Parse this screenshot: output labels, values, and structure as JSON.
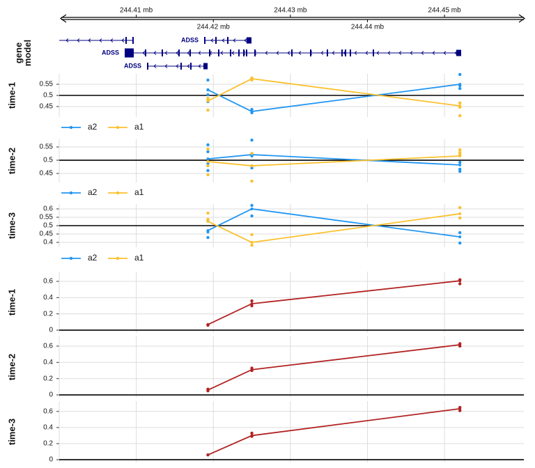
{
  "genome_axis": {
    "xlim": [
      244.4,
      244.4603
    ],
    "xticks": [
      {
        "value": 244.41,
        "label": "244.41 mb"
      },
      {
        "value": 244.42,
        "label": "244.42 mb"
      },
      {
        "value": 244.43,
        "label": "244.43 mb"
      },
      {
        "value": 244.44,
        "label": "244.44 mb"
      },
      {
        "value": 244.45,
        "label": "244.45 mb"
      }
    ]
  },
  "gene_model": {
    "label": "gene model",
    "transcripts": [
      {
        "label": "ADSS"
      },
      {
        "label": "ADSS"
      },
      {
        "label": "ADSS"
      }
    ]
  },
  "chart_data": [
    {
      "type": "line",
      "ylabel": "time-1",
      "x": [
        244.4193,
        244.425,
        244.452
      ],
      "ylim": [
        0.403,
        0.597
      ],
      "yticks": [
        0.45,
        0.5,
        0.55
      ],
      "hline": 0.5,
      "legend": true,
      "series": [
        {
          "name": "a2",
          "color": "#2196f3",
          "values": [
            0.525,
            0.428,
            0.55
          ],
          "replicates": [
            [
              0.569,
              0.525,
              0.503,
              0.472
            ],
            [
              0.437,
              0.422
            ],
            [
              0.594,
              0.544,
              0.531
            ]
          ]
        },
        {
          "name": "a1",
          "color": "#fbc02d",
          "values": [
            0.475,
            0.575,
            0.453
          ],
          "replicates": [
            [
              0.487,
              0.478,
              0.434
            ],
            [
              0.578,
              0.569
            ],
            [
              0.466,
              0.447,
              0.409
            ]
          ]
        }
      ]
    },
    {
      "type": "line",
      "ylabel": "time-2",
      "x": [
        244.4193,
        244.425,
        244.452
      ],
      "ylim": [
        0.416,
        0.579
      ],
      "yticks": [
        0.45,
        0.5,
        0.55
      ],
      "hline": 0.5,
      "legend": true,
      "series": [
        {
          "name": "a2",
          "color": "#2196f3",
          "values": [
            0.505,
            0.521,
            0.482
          ],
          "replicates": [
            [
              0.558,
              0.532,
              0.487,
              0.461
            ],
            [
              0.576,
              0.516,
              0.471
            ],
            [
              0.492,
              0.466,
              0.458
            ]
          ]
        },
        {
          "name": "a1",
          "color": "#fbc02d",
          "values": [
            0.495,
            0.479,
            0.516
          ],
          "replicates": [
            [
              0.542,
              0.479,
              0.445
            ],
            [
              0.526,
              0.479,
              0.421
            ],
            [
              0.539,
              0.529,
              0.521
            ]
          ]
        }
      ]
    },
    {
      "type": "line",
      "ylabel": "time-3",
      "x": [
        244.4193,
        244.425,
        244.452
      ],
      "ylim": [
        0.371,
        0.629
      ],
      "yticks": [
        0.4,
        0.45,
        0.5,
        0.55,
        0.6
      ],
      "hline": 0.5,
      "legend": true,
      "series": [
        {
          "name": "a2",
          "color": "#2196f3",
          "values": [
            0.471,
            0.6,
            0.433
          ],
          "replicates": [
            [
              0.529,
              0.463,
              0.429
            ],
            [
              0.621,
              0.558
            ],
            [
              0.458,
              0.396
            ]
          ]
        },
        {
          "name": "a1",
          "color": "#fbc02d",
          "values": [
            0.525,
            0.4,
            0.571
          ],
          "replicates": [
            [
              0.575,
              0.538
            ],
            [
              0.446,
              0.383
            ],
            [
              0.608,
              0.546
            ]
          ]
        }
      ]
    },
    {
      "type": "line",
      "ylabel": "time-1",
      "x": [
        244.4193,
        244.425,
        244.452
      ],
      "ylim": [
        -0.034,
        0.72
      ],
      "yticks": [
        0,
        0.2,
        0.4,
        0.6
      ],
      "hline": 0,
      "legend": false,
      "series": [
        {
          "color": "#b22222",
          "values": [
            0.068,
            0.325,
            0.607
          ],
          "replicates": [
            [
              0.068,
              0.06
            ],
            [
              0.36,
              0.3
            ],
            [
              0.62,
              0.57
            ]
          ]
        }
      ]
    },
    {
      "type": "line",
      "ylabel": "time-2",
      "x": [
        244.4193,
        244.425,
        244.452
      ],
      "ylim": [
        -0.034,
        0.72
      ],
      "yticks": [
        0,
        0.2,
        0.4,
        0.6
      ],
      "hline": 0,
      "legend": false,
      "series": [
        {
          "color": "#b22222",
          "values": [
            0.06,
            0.31,
            0.617
          ],
          "replicates": [
            [
              0.07,
              0.05
            ],
            [
              0.33,
              0.3
            ],
            [
              0.63,
              0.6
            ]
          ]
        }
      ]
    },
    {
      "type": "line",
      "ylabel": "time-3",
      "x": [
        244.4193,
        244.425,
        244.452
      ],
      "ylim": [
        -0.034,
        0.728
      ],
      "yticks": [
        0,
        0.2,
        0.4,
        0.6
      ],
      "hline": 0,
      "legend": false,
      "series": [
        {
          "color": "#b22222",
          "values": [
            0.06,
            0.3,
            0.634
          ],
          "replicates": [
            [
              0.06
            ],
            [
              0.33,
              0.29
            ],
            [
              0.65,
              0.61
            ]
          ]
        }
      ]
    }
  ]
}
